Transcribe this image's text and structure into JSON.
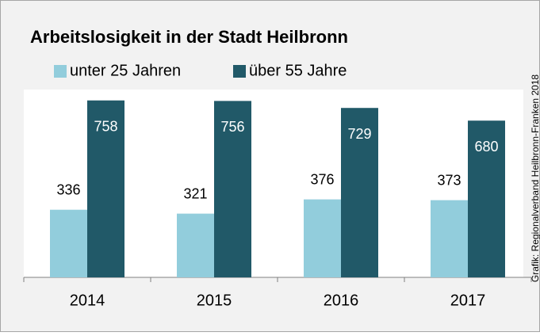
{
  "chart_data": {
    "type": "bar",
    "title": "Arbeitslosigkeit in der Stadt Heilbronn",
    "source": "Grafik: Regionalverband Heilbronn-Franken 2018",
    "categories": [
      "2014",
      "2015",
      "2016",
      "2017"
    ],
    "series": [
      {
        "name": "unter 25 Jahren",
        "color": "#92cddc",
        "values": [
          336,
          321,
          376,
          373
        ]
      },
      {
        "name": "über 55 Jahre",
        "color": "#215968",
        "values": [
          758,
          756,
          729,
          680
        ]
      }
    ],
    "ylim": [
      75,
      800
    ]
  }
}
